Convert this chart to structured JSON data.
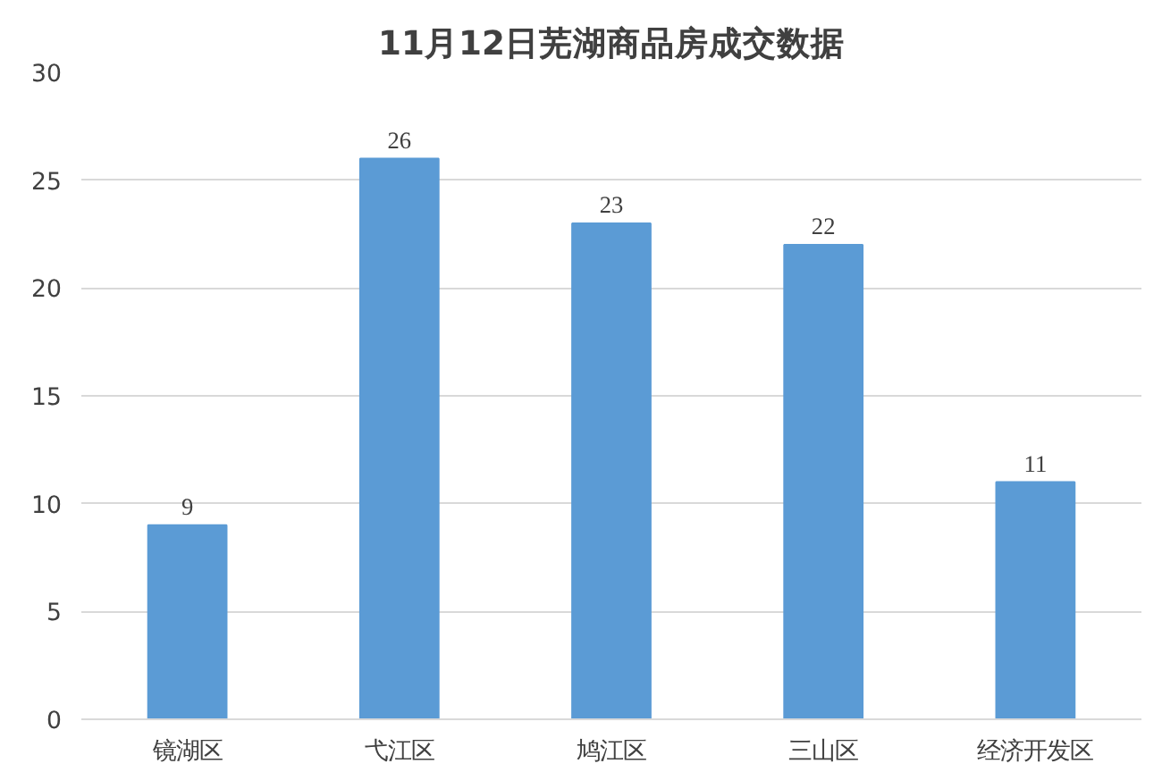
{
  "chart_data": {
    "type": "bar",
    "title": "11月12日芜湖商品房成交数据",
    "categories": [
      "镜湖区",
      "弋江区",
      "鸠江区",
      "三山区",
      "经济开发区"
    ],
    "values": [
      9,
      26,
      23,
      22,
      11
    ],
    "color": "#5b9bd5",
    "ylim": [
      0,
      30
    ],
    "yticks": [
      0,
      5,
      10,
      15,
      20,
      25,
      30
    ],
    "grid": "y",
    "data_labels": true
  }
}
